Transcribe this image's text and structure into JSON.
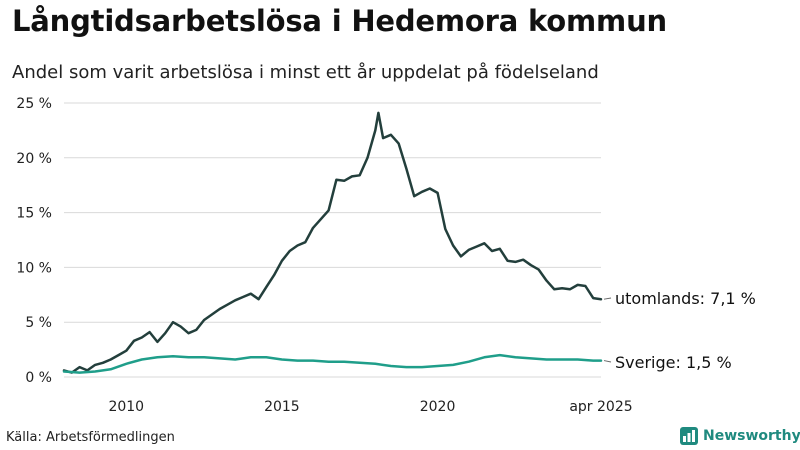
{
  "title": "Långtidsarbetslösa i Hedemora kommun",
  "subtitle": "Andel som varit arbetslösa i minst ett år uppdelat på födelseland",
  "source": "Källa: Arbetsförmedlingen",
  "brand": {
    "name": "Newsworthy",
    "icon": "newsworthy-logo-icon"
  },
  "colors": {
    "utomlands": "#233f3c",
    "sverige": "#1f9e8a",
    "grid": "#d9d9d9",
    "brand": "#1f8a7f"
  },
  "chart_data": {
    "type": "line",
    "title": "Långtidsarbetslösa i Hedemora kommun",
    "subtitle": "Andel som varit arbetslösa i minst ett år uppdelat på födelseland",
    "xlabel": "",
    "ylabel": "",
    "x_ticks": [
      {
        "x": 2010.0,
        "label": "2010"
      },
      {
        "x": 2015.0,
        "label": "2015"
      },
      {
        "x": 2020.0,
        "label": "2020"
      },
      {
        "x": 2025.25,
        "label": "apr 2025"
      }
    ],
    "y_ticks": [
      {
        "y": 0,
        "label": "0 %"
      },
      {
        "y": 5,
        "label": "5 %"
      },
      {
        "y": 10,
        "label": "10 %"
      },
      {
        "y": 15,
        "label": "15 %"
      },
      {
        "y": 20,
        "label": "20 %"
      },
      {
        "y": 25,
        "label": "25 %"
      }
    ],
    "xlim": [
      2008.0,
      2025.25
    ],
    "ylim": [
      0,
      25
    ],
    "grid": true,
    "series": [
      {
        "name": "utomlands",
        "end_label": "utomlands: 7,1 %",
        "color": "#233f3c",
        "points": [
          [
            2008.0,
            0.6
          ],
          [
            2008.25,
            0.4
          ],
          [
            2008.5,
            0.9
          ],
          [
            2008.75,
            0.6
          ],
          [
            2009.0,
            1.1
          ],
          [
            2009.25,
            1.3
          ],
          [
            2009.5,
            1.6
          ],
          [
            2009.75,
            2.0
          ],
          [
            2010.0,
            2.4
          ],
          [
            2010.25,
            3.3
          ],
          [
            2010.5,
            3.6
          ],
          [
            2010.75,
            4.1
          ],
          [
            2011.0,
            3.2
          ],
          [
            2011.25,
            4.0
          ],
          [
            2011.5,
            5.0
          ],
          [
            2011.75,
            4.6
          ],
          [
            2012.0,
            4.0
          ],
          [
            2012.25,
            4.3
          ],
          [
            2012.5,
            5.2
          ],
          [
            2012.75,
            5.7
          ],
          [
            2013.0,
            6.2
          ],
          [
            2013.25,
            6.6
          ],
          [
            2013.5,
            7.0
          ],
          [
            2013.75,
            7.3
          ],
          [
            2014.0,
            7.6
          ],
          [
            2014.25,
            7.1
          ],
          [
            2014.5,
            8.2
          ],
          [
            2014.75,
            9.3
          ],
          [
            2015.0,
            10.6
          ],
          [
            2015.25,
            11.5
          ],
          [
            2015.5,
            12.0
          ],
          [
            2015.75,
            12.3
          ],
          [
            2016.0,
            13.6
          ],
          [
            2016.25,
            14.4
          ],
          [
            2016.5,
            15.2
          ],
          [
            2016.75,
            18.0
          ],
          [
            2017.0,
            17.9
          ],
          [
            2017.25,
            18.3
          ],
          [
            2017.5,
            18.4
          ],
          [
            2017.75,
            20.0
          ],
          [
            2018.0,
            22.5
          ],
          [
            2018.1,
            24.1
          ],
          [
            2018.25,
            21.8
          ],
          [
            2018.5,
            22.1
          ],
          [
            2018.75,
            21.3
          ],
          [
            2019.0,
            19.0
          ],
          [
            2019.25,
            16.5
          ],
          [
            2019.5,
            16.9
          ],
          [
            2019.75,
            17.2
          ],
          [
            2020.0,
            16.8
          ],
          [
            2020.25,
            13.5
          ],
          [
            2020.5,
            12.0
          ],
          [
            2020.75,
            11.0
          ],
          [
            2021.0,
            11.6
          ],
          [
            2021.25,
            11.9
          ],
          [
            2021.5,
            12.2
          ],
          [
            2021.75,
            11.5
          ],
          [
            2022.0,
            11.7
          ],
          [
            2022.25,
            10.6
          ],
          [
            2022.5,
            10.5
          ],
          [
            2022.75,
            10.7
          ],
          [
            2023.0,
            10.2
          ],
          [
            2023.25,
            9.8
          ],
          [
            2023.5,
            8.8
          ],
          [
            2023.75,
            8.0
          ],
          [
            2024.0,
            8.1
          ],
          [
            2024.25,
            8.0
          ],
          [
            2024.5,
            8.4
          ],
          [
            2024.75,
            8.3
          ],
          [
            2025.0,
            7.2
          ],
          [
            2025.25,
            7.1
          ]
        ]
      },
      {
        "name": "Sverige",
        "end_label": "Sverige: 1,5 %",
        "color": "#1f9e8a",
        "points": [
          [
            2008.0,
            0.5
          ],
          [
            2008.5,
            0.4
          ],
          [
            2009.0,
            0.5
          ],
          [
            2009.5,
            0.7
          ],
          [
            2010.0,
            1.2
          ],
          [
            2010.5,
            1.6
          ],
          [
            2011.0,
            1.8
          ],
          [
            2011.5,
            1.9
          ],
          [
            2012.0,
            1.8
          ],
          [
            2012.5,
            1.8
          ],
          [
            2013.0,
            1.7
          ],
          [
            2013.5,
            1.6
          ],
          [
            2014.0,
            1.8
          ],
          [
            2014.5,
            1.8
          ],
          [
            2015.0,
            1.6
          ],
          [
            2015.5,
            1.5
          ],
          [
            2016.0,
            1.5
          ],
          [
            2016.5,
            1.4
          ],
          [
            2017.0,
            1.4
          ],
          [
            2017.5,
            1.3
          ],
          [
            2018.0,
            1.2
          ],
          [
            2018.5,
            1.0
          ],
          [
            2019.0,
            0.9
          ],
          [
            2019.5,
            0.9
          ],
          [
            2020.0,
            1.0
          ],
          [
            2020.5,
            1.1
          ],
          [
            2021.0,
            1.4
          ],
          [
            2021.5,
            1.8
          ],
          [
            2022.0,
            2.0
          ],
          [
            2022.5,
            1.8
          ],
          [
            2023.0,
            1.7
          ],
          [
            2023.5,
            1.6
          ],
          [
            2024.0,
            1.6
          ],
          [
            2024.5,
            1.6
          ],
          [
            2025.0,
            1.5
          ],
          [
            2025.25,
            1.5
          ]
        ]
      }
    ]
  }
}
